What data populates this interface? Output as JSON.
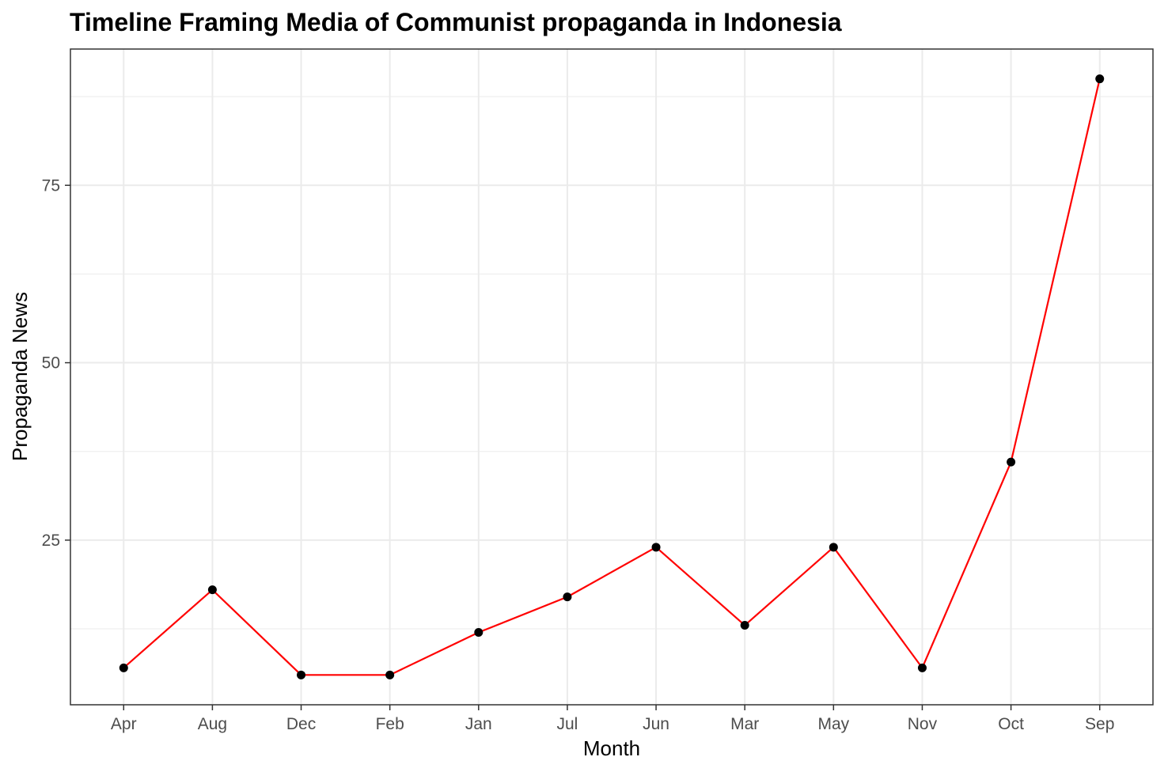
{
  "chart_data": {
    "type": "line",
    "title": "Timeline Framing Media of Communist propaganda in Indonesia",
    "xlabel": "Month",
    "ylabel": "Propaganda News",
    "categories": [
      "Apr",
      "Aug",
      "Dec",
      "Feb",
      "Jan",
      "Jul",
      "Jun",
      "Mar",
      "May",
      "Nov",
      "Oct",
      "Sep"
    ],
    "series": [
      {
        "values": [
          7,
          18,
          6,
          6,
          12,
          17,
          24,
          13,
          24,
          7,
          36,
          90
        ]
      }
    ],
    "ylim": [
      1.8,
      94.2
    ],
    "yticks": [
      25,
      50,
      75
    ],
    "y_minor_ticks": [
      12.5,
      37.5,
      62.5,
      87.5
    ],
    "grid": true,
    "legend": "none",
    "colors": {
      "line": "#ff0000",
      "point": "#000000",
      "grid": "#ebebeb",
      "border": "#333333"
    }
  }
}
